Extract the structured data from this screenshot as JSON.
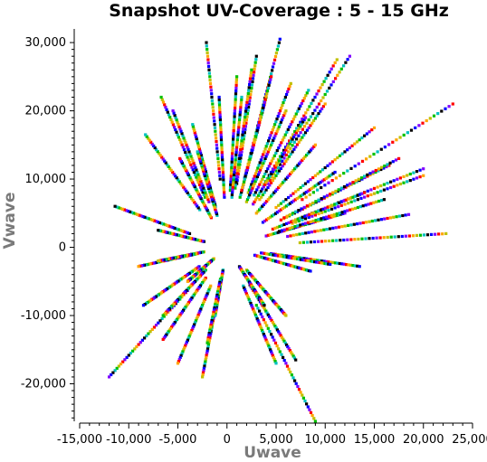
{
  "chart_data": {
    "type": "scatter",
    "title": "Snapshot UV-Coverage :  5 - 15 GHz",
    "xlabel": "Uwave",
    "ylabel": "Vwave",
    "xlim": [
      -15000,
      25000
    ],
    "ylim": [
      -25500,
      32000
    ],
    "x_ticks": [
      -15000,
      -10000,
      -5000,
      0,
      5000,
      10000,
      15000,
      20000,
      25000
    ],
    "x_tick_labels": [
      "-15,000",
      "-10,000",
      "-5,000",
      "0",
      "5,000",
      "10,000",
      "15,000",
      "20,000",
      "25,000"
    ],
    "y_ticks": [
      -20000,
      -10000,
      0,
      10000,
      20000,
      30000
    ],
    "y_tick_labels": [
      "-20,000",
      "-10,000",
      "0",
      "10,000",
      "20,000",
      "30,000"
    ],
    "grid": false,
    "legend": "none",
    "point_colors": [
      "#000000",
      "#0000ff",
      "#8000ff",
      "#ff0000",
      "#ffa500",
      "#c0c000",
      "#00c000",
      "#00c0c0"
    ],
    "baselines_u_v_at_15GHz": [
      [
        -2100,
        30000
      ],
      [
        5400,
        30500
      ],
      [
        12500,
        28000
      ],
      [
        23000,
        21000
      ],
      [
        20000,
        10500
      ],
      [
        22300,
        2000
      ],
      [
        -6700,
        22000
      ],
      [
        -8300,
        16500
      ],
      [
        -11400,
        6000
      ],
      [
        -8500,
        -8500
      ],
      [
        -12000,
        -19000
      ],
      [
        -6500,
        -13500
      ],
      [
        -5000,
        -17000
      ],
      [
        -2500,
        -19000
      ],
      [
        9000,
        -25500
      ],
      [
        5000,
        -17000
      ],
      [
        7000,
        -16500
      ],
      [
        13500,
        -2800
      ],
      [
        18500,
        4800
      ],
      [
        16500,
        12000
      ],
      [
        15000,
        17500
      ],
      [
        11200,
        27500
      ],
      [
        1000,
        25000
      ],
      [
        8300,
        23000
      ],
      [
        3000,
        28000
      ],
      [
        -800,
        22000
      ],
      [
        -5500,
        20000
      ],
      [
        -4800,
        13000
      ],
      [
        -9000,
        -2800
      ],
      [
        -7000,
        -2000
      ],
      [
        -6500,
        -10000
      ],
      [
        -1200,
        -10000
      ],
      [
        3800,
        -8500
      ],
      [
        10500,
        -2500
      ],
      [
        20000,
        11500
      ],
      [
        17500,
        13000
      ],
      [
        10000,
        21000
      ],
      [
        6500,
        24000
      ],
      [
        4000,
        22000
      ],
      [
        -3500,
        18000
      ],
      [
        -7000,
        2500
      ],
      [
        8500,
        -3500
      ],
      [
        12000,
        5000
      ],
      [
        14000,
        8000
      ],
      [
        9000,
        15000
      ],
      [
        6000,
        20000
      ],
      [
        2500,
        26000
      ],
      [
        -3000,
        14000
      ],
      [
        16000,
        7000
      ],
      [
        11000,
        11000
      ],
      [
        8000,
        19000
      ],
      [
        4500,
        25000
      ],
      [
        -4000,
        -5000
      ],
      [
        6000,
        -10000
      ],
      [
        -2000,
        -14000
      ],
      [
        1500,
        22000
      ]
    ],
    "frequency_ghz": [
      5,
      15
    ]
  }
}
